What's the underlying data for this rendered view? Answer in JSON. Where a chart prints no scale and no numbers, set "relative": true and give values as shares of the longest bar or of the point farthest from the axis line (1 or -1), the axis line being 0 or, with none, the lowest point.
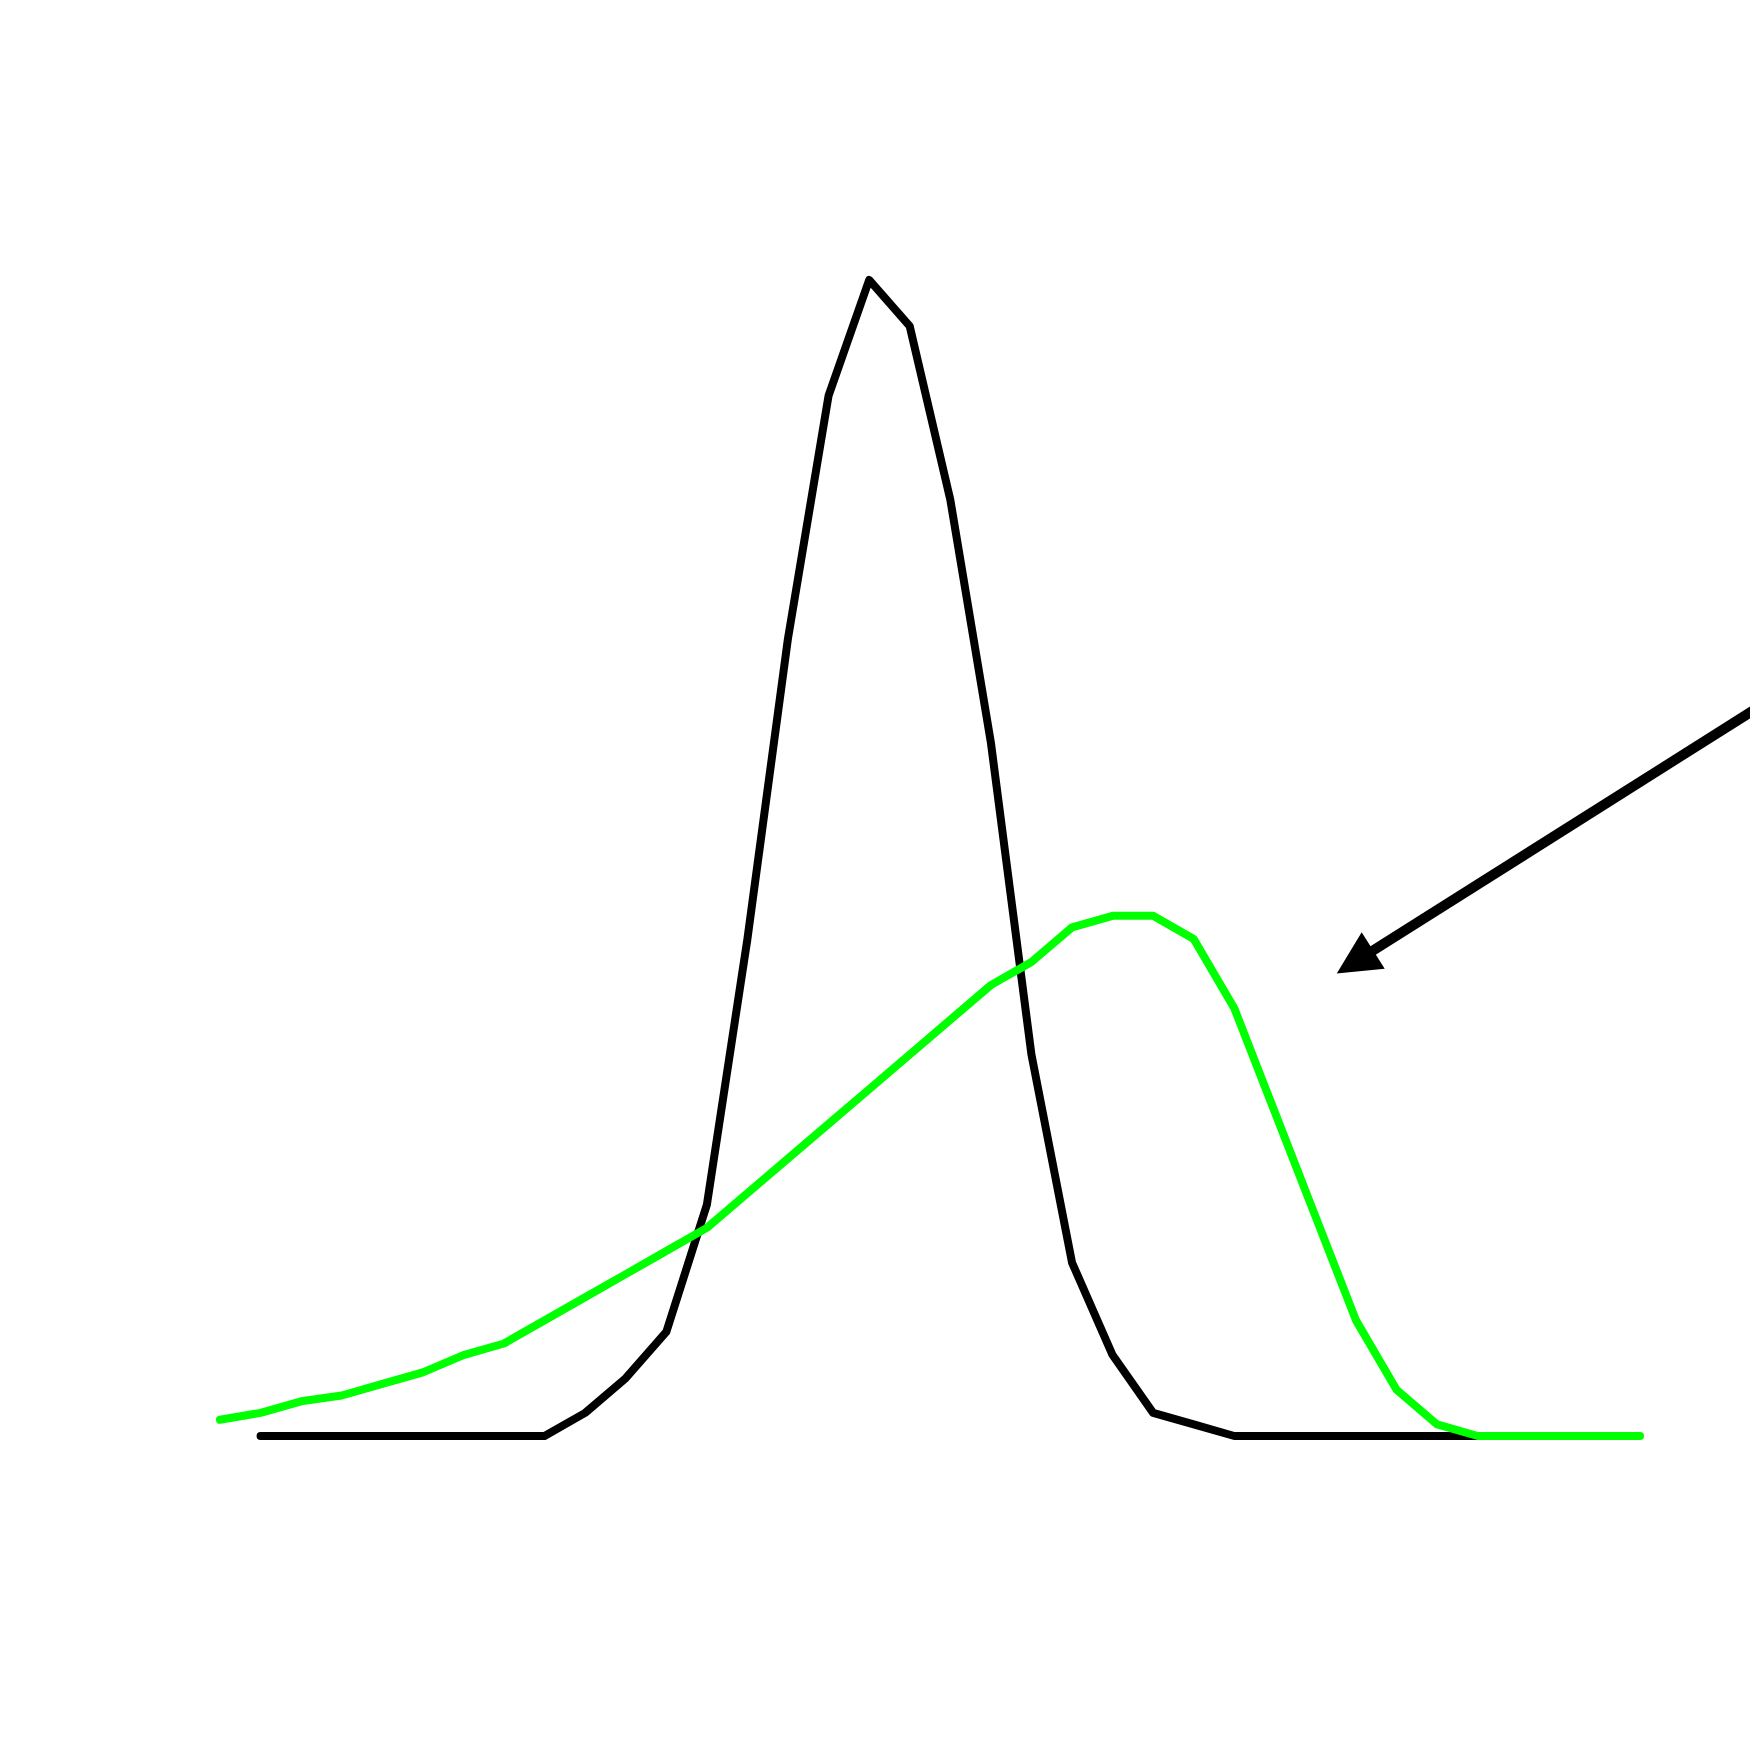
{
  "chart_data": {
    "type": "line",
    "relative": true,
    "categories": [
      null,
      null,
      null,
      null,
      null,
      null,
      null,
      null,
      null,
      null,
      null,
      null,
      null,
      null,
      null,
      null,
      null,
      null,
      null,
      null,
      null,
      null,
      null,
      null,
      null,
      null,
      null,
      null,
      null,
      null,
      null,
      null,
      null,
      null,
      null,
      null
    ],
    "series": [
      {
        "color": "#000000",
        "values": [
          null,
          0,
          0,
          0,
          0,
          0,
          0,
          0,
          0,
          0.02,
          0.05,
          0.09,
          0.2,
          0.43,
          0.69,
          0.9,
          1.0,
          0.96,
          0.81,
          0.6,
          0.33,
          0.15,
          0.07,
          0.02,
          0.01,
          0,
          0,
          0,
          0,
          0,
          0,
          0,
          null,
          null,
          null,
          null
        ]
      },
      {
        "color": "#00ff00",
        "values": [
          0.014,
          0.02,
          0.03,
          0.035,
          0.045,
          0.055,
          0.07,
          0.08,
          0.1,
          0.12,
          0.14,
          0.16,
          0.18,
          0.21,
          0.24,
          0.27,
          0.3,
          0.33,
          0.36,
          0.39,
          0.41,
          0.44,
          0.45,
          0.45,
          0.43,
          0.37,
          0.28,
          0.19,
          0.1,
          0.04,
          0.01,
          0,
          0,
          0,
          0,
          0
        ]
      }
    ]
  }
}
